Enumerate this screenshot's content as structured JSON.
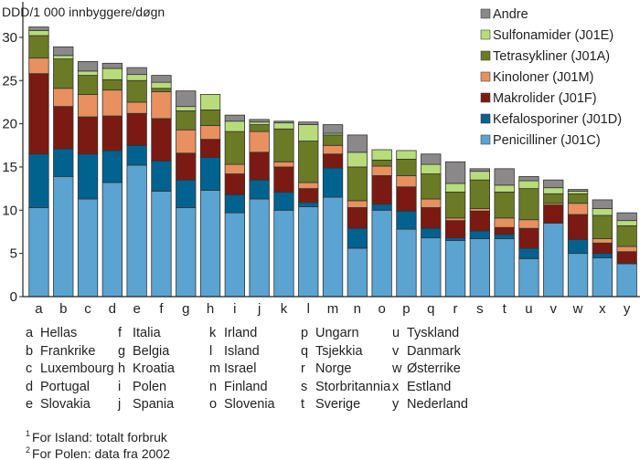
{
  "chart_data": {
    "type": "bar",
    "stacked": true,
    "ylabel": "DDD/1 000 innbyggere/døgn",
    "ylim": [
      0,
      32
    ],
    "yticks": [
      0,
      5,
      10,
      15,
      20,
      25,
      30
    ],
    "grid": false,
    "legend_position": "top-right",
    "categories": [
      "a",
      "b",
      "c",
      "d",
      "e",
      "f",
      "g",
      "h",
      "i",
      "j",
      "k",
      "l",
      "m",
      "n",
      "o",
      "p",
      "q",
      "r",
      "s",
      "t",
      "u",
      "v",
      "w",
      "x",
      "y"
    ],
    "series": [
      {
        "name": "Penicilliner (J01C)",
        "color": "#5ba3d0",
        "values": [
          10.3,
          13.9,
          11.3,
          13.2,
          15.2,
          12.2,
          10.3,
          12.3,
          9.7,
          11.3,
          10.0,
          10.4,
          11.5,
          5.6,
          10.0,
          7.8,
          6.8,
          6.5,
          6.7,
          6.7,
          4.4,
          8.5,
          5.0,
          4.5,
          3.8
        ]
      },
      {
        "name": "Kefalosporiner (J01D)",
        "color": "#00628f",
        "values": [
          6.2,
          3.2,
          5.2,
          3.7,
          2.3,
          3.5,
          3.2,
          3.8,
          2.1,
          2.2,
          2.1,
          0.5,
          3.4,
          2.3,
          0.7,
          2.1,
          1.1,
          0.3,
          0.9,
          0.5,
          1.2,
          0.0,
          1.6,
          0.5,
          0.1
        ]
      },
      {
        "name": "Makrolider (J01F)",
        "color": "#7a1a12",
        "values": [
          9.3,
          4.9,
          4.3,
          4.0,
          3.7,
          4.9,
          3.1,
          2.1,
          2.4,
          3.2,
          2.9,
          1.6,
          1.6,
          2.4,
          3.3,
          2.8,
          2.4,
          2.0,
          2.3,
          0.8,
          2.3,
          2.1,
          2.9,
          1.2,
          1.3
        ]
      },
      {
        "name": "Kinoloner (J01M)",
        "color": "#e8905f",
        "values": [
          1.8,
          2.1,
          2.6,
          3.0,
          1.3,
          3.1,
          2.7,
          1.6,
          1.1,
          2.4,
          0.6,
          0.7,
          1.0,
          0.8,
          1.1,
          1.3,
          1.0,
          0.3,
          0.3,
          1.1,
          1.0,
          0.2,
          1.3,
          0.5,
          0.6
        ]
      },
      {
        "name": "Tetrasykliner (J01A)",
        "color": "#6b7a25",
        "values": [
          2.6,
          3.4,
          2.2,
          1.2,
          2.5,
          0.4,
          2.2,
          1.8,
          3.8,
          0.8,
          3.8,
          4.8,
          1.2,
          3.9,
          0.7,
          1.9,
          2.9,
          3.0,
          3.3,
          3.0,
          3.6,
          1.1,
          1.1,
          2.7,
          2.4
        ]
      },
      {
        "name": "Sulfonamider (J01E)",
        "color": "#b8dc7a",
        "values": [
          0.6,
          0.4,
          0.5,
          1.3,
          0.7,
          0.7,
          0.5,
          1.8,
          1.2,
          0.3,
          0.7,
          1.9,
          0.2,
          1.7,
          1.2,
          1.0,
          1.1,
          1.0,
          1.0,
          0.8,
          0.9,
          0.7,
          0.3,
          0.8,
          0.6
        ]
      },
      {
        "name": "Andre",
        "color": "#8a8889",
        "values": [
          0.4,
          1.0,
          1.1,
          0.6,
          0.8,
          0.8,
          1.8,
          0.0,
          0.7,
          0.3,
          0.2,
          0.3,
          1.0,
          2.0,
          0.0,
          0.0,
          1.2,
          2.5,
          0.3,
          1.9,
          0.5,
          0.9,
          0.2,
          1.0,
          0.9
        ]
      }
    ]
  },
  "countries": [
    {
      "letter": "a",
      "name": "Hellas"
    },
    {
      "letter": "b",
      "name": "Frankrike"
    },
    {
      "letter": "c",
      "name": "Luxembourg"
    },
    {
      "letter": "d",
      "name": "Portugal"
    },
    {
      "letter": "e",
      "name": "Slovakia"
    },
    {
      "letter": "f",
      "name": "Italia"
    },
    {
      "letter": "g",
      "name": "Belgia"
    },
    {
      "letter": "h",
      "name": "Kroatia"
    },
    {
      "letter": "i",
      "name": "Polen"
    },
    {
      "letter": "j",
      "name": "Spania"
    },
    {
      "letter": "k",
      "name": "Irland"
    },
    {
      "letter": "l",
      "name": "Island"
    },
    {
      "letter": "m",
      "name": "Israel"
    },
    {
      "letter": "n",
      "name": "Finland"
    },
    {
      "letter": "o",
      "name": "Slovenia"
    },
    {
      "letter": "p",
      "name": "Ungarn"
    },
    {
      "letter": "q",
      "name": "Tsjekkia"
    },
    {
      "letter": "r",
      "name": "Norge"
    },
    {
      "letter": "s",
      "name": "Storbritannia"
    },
    {
      "letter": "t",
      "name": "Sverige"
    },
    {
      "letter": "u",
      "name": "Tyskland"
    },
    {
      "letter": "v",
      "name": "Danmark"
    },
    {
      "letter": "w",
      "name": "Østerrike"
    },
    {
      "letter": "x",
      "name": "Estland"
    },
    {
      "letter": "y",
      "name": "Nederland"
    }
  ],
  "footnotes": [
    {
      "mark": "1",
      "text": "For Island: totalt forbruk"
    },
    {
      "mark": "2",
      "text": "For Polen: data fra 2002"
    }
  ]
}
